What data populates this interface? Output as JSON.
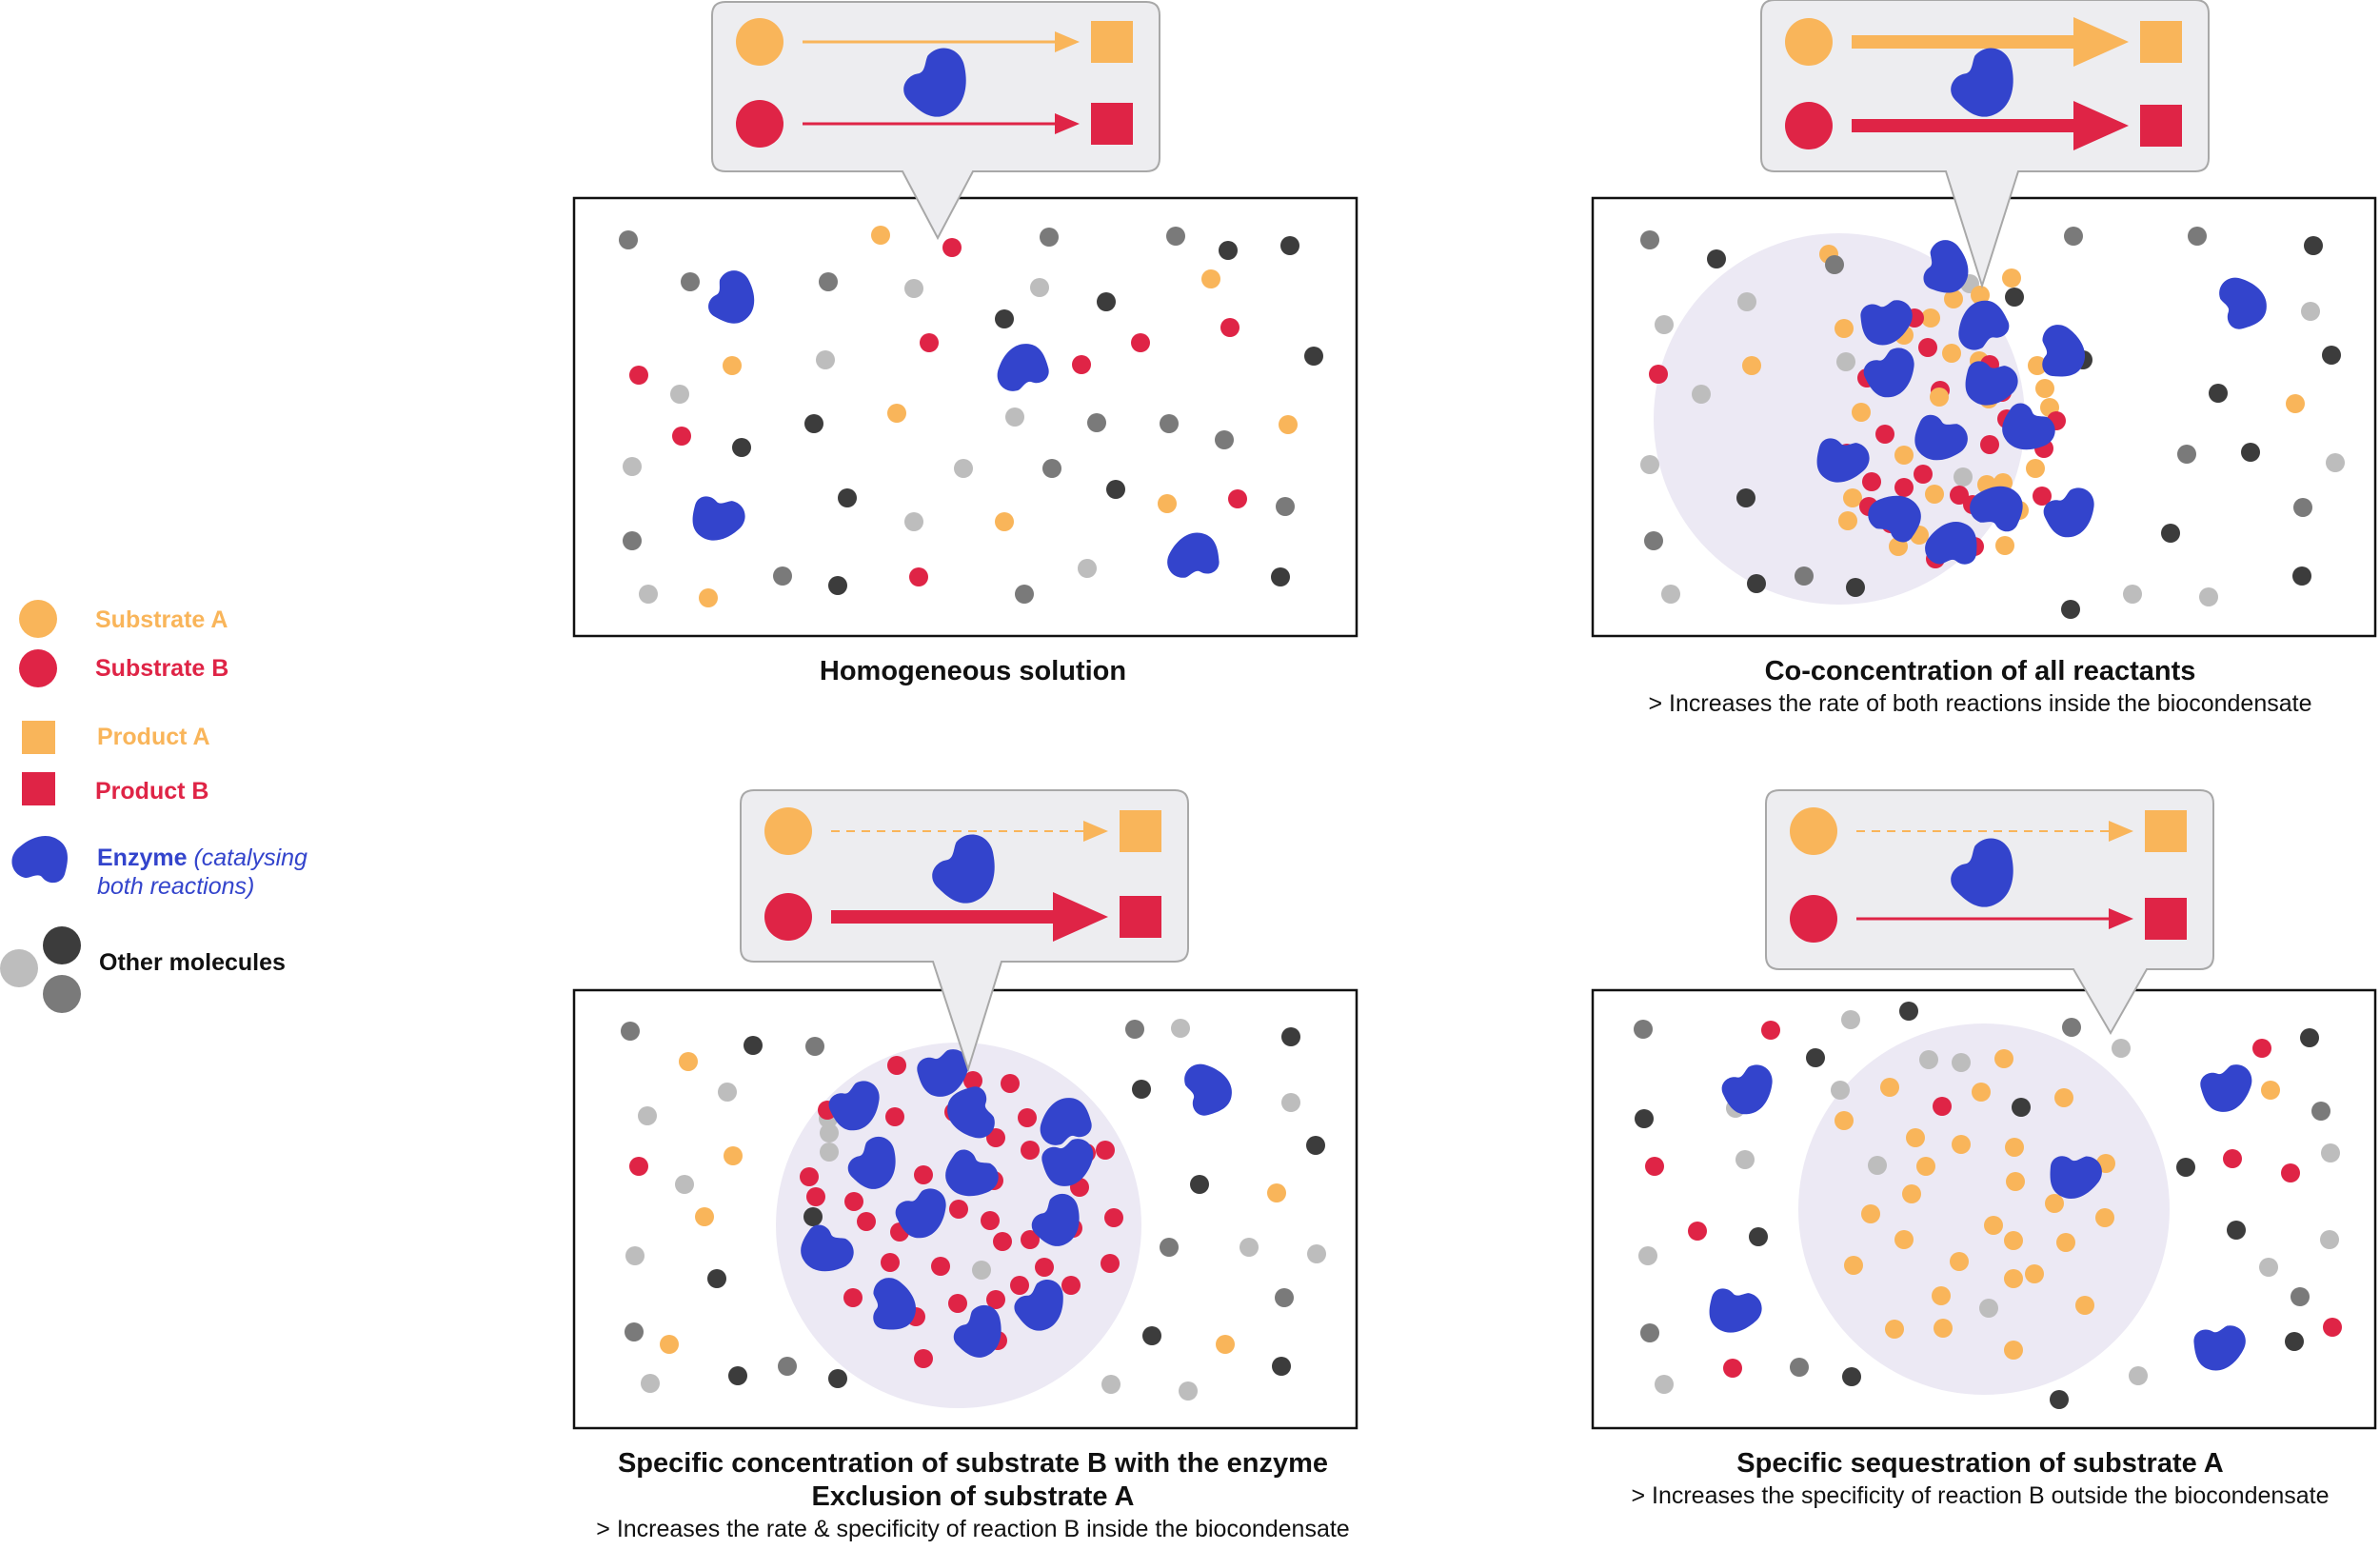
{
  "colors": {
    "substrate_a": "#F9B55A",
    "substrate_b": "#DF2446",
    "enzyme": "#3344CC",
    "other_light": "#BDBDBD",
    "other_mid": "#7A7A7A",
    "other_dark": "#3C3C3C",
    "condensate": "#ECE9F4",
    "bubble_fill": "#EDEDF0",
    "bubble_stroke": "#A8A8A8"
  },
  "legend": {
    "substrate_a": "Substrate A",
    "substrate_b": "Substrate B",
    "product_a": "Product A",
    "product_b": "Product B",
    "enzyme": "Enzyme",
    "enzyme_note_line1": "(catalysing",
    "enzyme_note_line2": "both reactions)",
    "other": "Other molecules"
  },
  "panels": [
    {
      "id": "homogeneous",
      "title": "Homogeneous solution",
      "title2": "",
      "note": "",
      "reaction_a": "thin",
      "reaction_b": "thin"
    },
    {
      "id": "co-concentration",
      "title": "Co-concentration of all reactants",
      "title2": "",
      "note": "> Increases the rate of both reactions inside the biocondensate",
      "reaction_a": "thick",
      "reaction_b": "thick"
    },
    {
      "id": "specific-concentration",
      "title": "Specific concentration of substrate B with the enzyme",
      "title2": "Exclusion of substrate A",
      "note": "> Increases the rate & specificity of reaction B inside the biocondensate",
      "reaction_a": "dashed",
      "reaction_b": "thick"
    },
    {
      "id": "sequestration",
      "title": "Specific sequestration of substrate A",
      "title2": "",
      "note": "> Increases the specificity of reaction B outside the biocondensate",
      "reaction_a": "dashed",
      "reaction_b": "thin"
    }
  ]
}
